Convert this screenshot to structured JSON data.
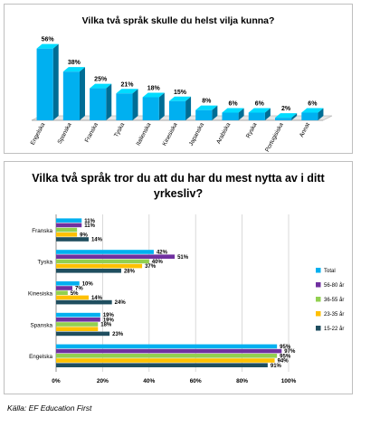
{
  "chart_data": [
    {
      "type": "bar",
      "title": "Vilka två språk skulle du helst vilja kunna?",
      "categories": [
        "Engelska",
        "Spanska",
        "Franska",
        "Tyska",
        "Italienska",
        "Kinesiska",
        "Japanska",
        "Arabiska",
        "Ryska",
        "Portugisiska",
        "Annat"
      ],
      "values": [
        56,
        38,
        25,
        21,
        18,
        15,
        8,
        6,
        6,
        2,
        6
      ],
      "data_labels": [
        "56%",
        "38%",
        "25%",
        "21%",
        "18%",
        "15%",
        "8%",
        "6%",
        "6%",
        "2%",
        "6%"
      ],
      "style": "3d-column",
      "color": "#00b0f0",
      "grid": false,
      "ylim": [
        0,
        60
      ]
    },
    {
      "type": "bar",
      "orientation": "horizontal",
      "title": "Vilka två språk tror du att du har du mest nytta av i ditt yrkesliv?",
      "categories": [
        "Franska",
        "Tyska",
        "Kinesiska",
        "Spanska",
        "Engelska"
      ],
      "series": [
        {
          "name": "Total",
          "color": "#00b0f0",
          "values": [
            11,
            42,
            10,
            19,
            95
          ],
          "labels": [
            "11%",
            "42%",
            "10%",
            "19%",
            "95%"
          ]
        },
        {
          "name": "56-80 år",
          "color": "#7030a0",
          "values": [
            11,
            51,
            7,
            19,
            97
          ],
          "labels": [
            "11%",
            "51%",
            "7%",
            "19%",
            "97%"
          ]
        },
        {
          "name": "36-55 år",
          "color": "#92d050",
          "values": [
            9,
            40,
            5,
            18,
            95
          ],
          "labels": [
            "",
            "40%",
            "5%",
            "18%",
            "95%"
          ]
        },
        {
          "name": "23-35 år",
          "color": "#ffc000",
          "values": [
            9,
            37,
            14,
            18,
            94
          ],
          "labels": [
            "9%",
            "37%",
            "14%",
            "",
            "94%"
          ]
        },
        {
          "name": "15-22 år",
          "color": "#1f4e5f",
          "values": [
            14,
            28,
            24,
            23,
            91
          ],
          "labels": [
            "14%",
            "28%",
            "24%",
            "23%",
            "91%"
          ]
        }
      ],
      "xticks": [
        "0%",
        "20%",
        "40%",
        "60%",
        "80%",
        "100%"
      ],
      "xlim": [
        0,
        100
      ],
      "grid": true,
      "legend": "right"
    }
  ],
  "source": "Källa: EF Education First"
}
